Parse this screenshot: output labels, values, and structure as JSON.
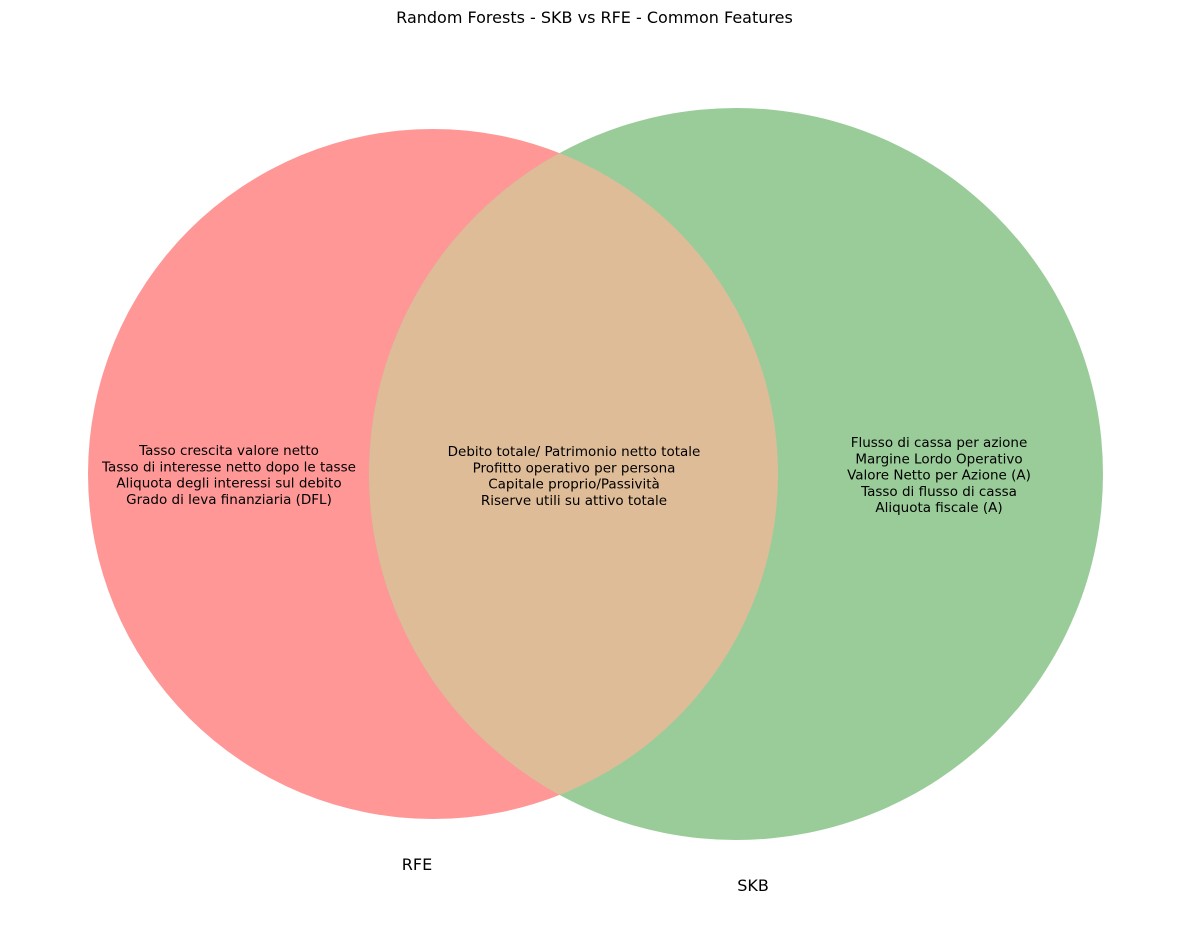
{
  "title": "Random Forests - SKB vs RFE - Common Features",
  "sets": [
    {
      "name": "RFE",
      "color": "#ff9797"
    },
    {
      "name": "SKB",
      "color": "#9acc99"
    }
  ],
  "intersection_color": "#dfbc98",
  "regions": {
    "rfe_only": [
      "Tasso crescita valore netto",
      "Tasso di interesse netto dopo le tasse",
      "Aliquota degli interessi sul debito",
      "Grado di leva finanziaria (DFL)"
    ],
    "common": [
      "Debito totale/ Patrimonio netto totale",
      "Profitto operativo per persona",
      "Capitale proprio/Passività",
      "Riserve utili su attivo totale"
    ],
    "skb_only": [
      "Flusso di cassa per azione",
      "Margine Lordo Operativo",
      "Valore Netto per Azione (A)",
      "Tasso di flusso di cassa",
      "Aliquota fiscale (A)"
    ]
  }
}
